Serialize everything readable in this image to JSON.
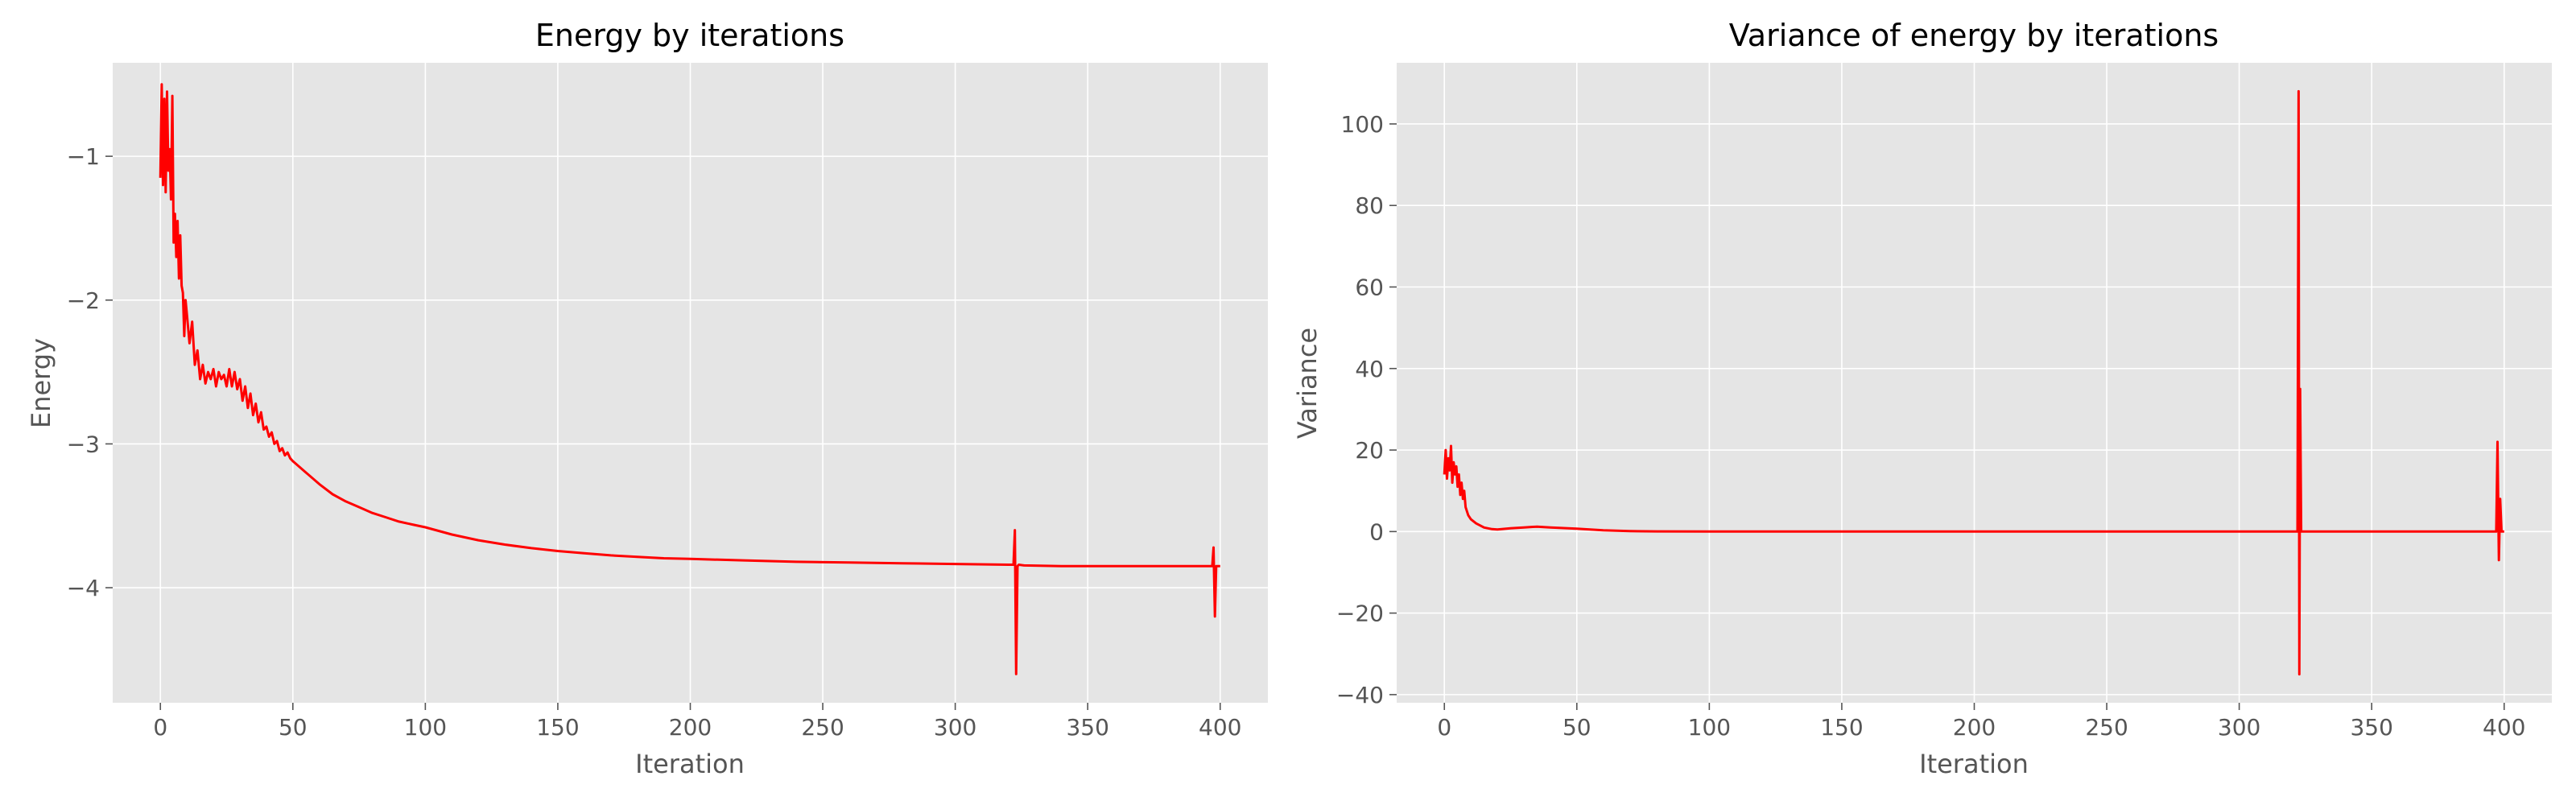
{
  "chart_data": [
    {
      "type": "line",
      "title": "Energy by iterations",
      "xlabel": "Iteration",
      "ylabel": "Energy",
      "xlim": [
        -18,
        418
      ],
      "ylim": [
        -4.8,
        -0.35
      ],
      "xticks": [
        0,
        50,
        100,
        150,
        200,
        250,
        300,
        350,
        400
      ],
      "yticks": [
        -4,
        -3,
        -2,
        -1
      ],
      "xtick_labels": [
        "0",
        "50",
        "100",
        "150",
        "200",
        "250",
        "300",
        "350",
        "400"
      ],
      "ytick_labels": [
        "−4",
        "−3",
        "−2",
        "−1"
      ],
      "grid": true,
      "color": "#ff0000",
      "series": [
        {
          "x": [
            0,
            0.5,
            1,
            1.5,
            2,
            2.5,
            3,
            3.5,
            4,
            4.5,
            5,
            5.5,
            6,
            6.5,
            7,
            7.5,
            8,
            8.5,
            9,
            9.5,
            10,
            11,
            12,
            13,
            14,
            15,
            16,
            17,
            18,
            19,
            20,
            21,
            22,
            23,
            24,
            25,
            26,
            27,
            28,
            29,
            30,
            31,
            32,
            33,
            34,
            35,
            36,
            37,
            38,
            39,
            40,
            41,
            42,
            43,
            44,
            45,
            46,
            47,
            48,
            49,
            50,
            55,
            60,
            65,
            70,
            75,
            80,
            85,
            90,
            95,
            100,
            110,
            120,
            130,
            140,
            150,
            160,
            170,
            180,
            190,
            200,
            220,
            240,
            260,
            280,
            300,
            320,
            322,
            322.5,
            323,
            323.5,
            324,
            326,
            340,
            360,
            380,
            396,
            397,
            397.5,
            398,
            398.5,
            399,
            400
          ],
          "y": [
            -1.15,
            -0.5,
            -1.2,
            -0.6,
            -1.25,
            -0.55,
            -1.1,
            -0.95,
            -1.3,
            -0.58,
            -1.6,
            -1.4,
            -1.7,
            -1.45,
            -1.85,
            -1.55,
            -1.9,
            -1.95,
            -2.25,
            -2.0,
            -2.1,
            -2.3,
            -2.15,
            -2.45,
            -2.35,
            -2.55,
            -2.45,
            -2.58,
            -2.5,
            -2.55,
            -2.48,
            -2.6,
            -2.5,
            -2.55,
            -2.52,
            -2.6,
            -2.48,
            -2.6,
            -2.5,
            -2.62,
            -2.55,
            -2.7,
            -2.6,
            -2.75,
            -2.65,
            -2.8,
            -2.72,
            -2.85,
            -2.78,
            -2.9,
            -2.88,
            -2.95,
            -2.92,
            -3.0,
            -2.98,
            -3.05,
            -3.03,
            -3.08,
            -3.06,
            -3.1,
            -3.12,
            -3.2,
            -3.28,
            -3.35,
            -3.4,
            -3.44,
            -3.48,
            -3.51,
            -3.54,
            -3.56,
            -3.58,
            -3.63,
            -3.67,
            -3.7,
            -3.725,
            -3.745,
            -3.76,
            -3.775,
            -3.785,
            -3.795,
            -3.8,
            -3.81,
            -3.82,
            -3.825,
            -3.83,
            -3.835,
            -3.84,
            -3.84,
            -3.6,
            -4.6,
            -3.85,
            -3.84,
            -3.845,
            -3.85,
            -3.85,
            -3.85,
            -3.85,
            -3.85,
            -3.72,
            -4.2,
            -3.85,
            -3.85,
            -3.85
          ]
        }
      ]
    },
    {
      "type": "line",
      "title": "Variance of energy by iterations",
      "xlabel": "Iteration",
      "ylabel": "Variance",
      "xlim": [
        -18,
        418
      ],
      "ylim": [
        -42,
        115
      ],
      "xticks": [
        0,
        50,
        100,
        150,
        200,
        250,
        300,
        350,
        400
      ],
      "yticks": [
        -40,
        -20,
        0,
        20,
        40,
        60,
        80,
        100
      ],
      "xtick_labels": [
        "0",
        "50",
        "100",
        "150",
        "200",
        "250",
        "300",
        "350",
        "400"
      ],
      "ytick_labels": [
        "−40",
        "−20",
        "0",
        "20",
        "40",
        "60",
        "80",
        "100"
      ],
      "grid": true,
      "color": "#ff0000",
      "series": [
        {
          "x": [
            0,
            0.5,
            1,
            1.5,
            2,
            2.5,
            3,
            3.5,
            4,
            4.5,
            5,
            5.5,
            6,
            6.5,
            7,
            7.5,
            8,
            9,
            10,
            12,
            15,
            18,
            20,
            25,
            30,
            35,
            40,
            50,
            60,
            70,
            80,
            100,
            150,
            200,
            250,
            300,
            321,
            322,
            322.4,
            322.7,
            323,
            323.4,
            324,
            330,
            350,
            380,
            396,
            397,
            397.5,
            398,
            398.5,
            399,
            400
          ],
          "y": [
            14,
            20,
            13,
            18,
            15,
            21,
            12,
            17,
            14,
            16,
            11,
            14,
            9,
            12,
            8,
            10,
            6,
            4,
            3,
            2,
            1,
            0.6,
            0.5,
            0.8,
            1.0,
            1.2,
            1.0,
            0.7,
            0.3,
            0.1,
            0.05,
            0,
            0,
            0,
            0,
            0,
            0,
            0,
            108,
            -35,
            35,
            0,
            0,
            0,
            0,
            0,
            0,
            0,
            22,
            -7,
            8,
            0,
            0
          ]
        }
      ]
    }
  ]
}
